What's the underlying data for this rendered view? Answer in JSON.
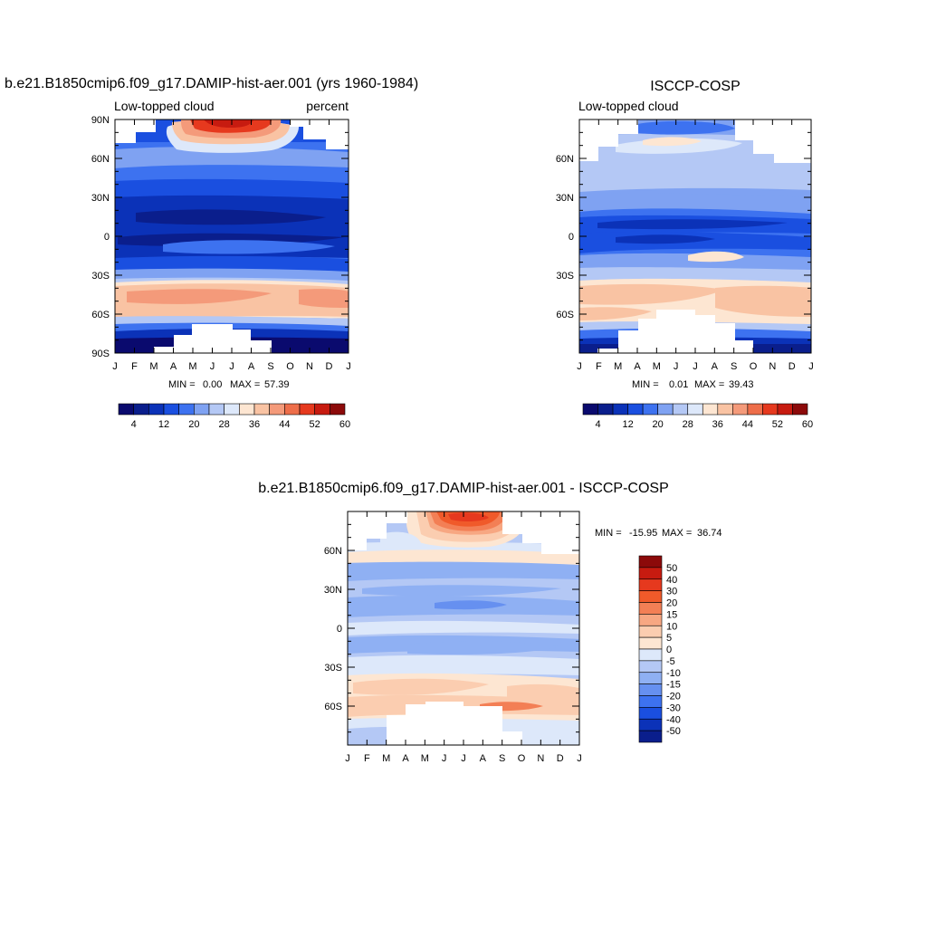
{
  "chart_data": [
    {
      "type": "heatmap",
      "title": "b.e21.B1850cmip6.f09_g17.DAMIP-hist-aer.001 (yrs 1960-1984)",
      "left_string": "Low-topped cloud",
      "right_string": "percent",
      "x_tick_labels": [
        "J",
        "F",
        "M",
        "A",
        "M",
        "J",
        "J",
        "A",
        "S",
        "O",
        "N",
        "D",
        "J"
      ],
      "y_tick_labels": [
        "90N",
        "60N",
        "30N",
        "0",
        "30S",
        "60S",
        "90S"
      ],
      "y_tick_values": [
        90,
        60,
        30,
        0,
        -30,
        -60,
        -90
      ],
      "ylim": [
        -90,
        90
      ],
      "min_label": "MIN =",
      "min_value": "0.00",
      "max_label": "MAX =",
      "max_value": "57.39",
      "colorbar_labels": [
        "4",
        "12",
        "20",
        "28",
        "36",
        "44",
        "52",
        "60"
      ],
      "colorbar_levels": [
        0,
        8,
        16,
        24,
        32,
        40,
        48,
        56,
        64
      ],
      "colorbar_colors": [
        "#0a0a6e",
        "#0a1e8c",
        "#0b32b8",
        "#1a4fe0",
        "#3d72f0",
        "#7fa2f2",
        "#b4c8f5",
        "#dde8fa",
        "#fde6d2",
        "#f9c3a3",
        "#f49a7a",
        "#ee6e4a",
        "#e6391e",
        "#c71b10",
        "#8c0a0a"
      ]
    },
    {
      "type": "heatmap",
      "title": "ISCCP-COSP",
      "left_string": "Low-topped cloud",
      "x_tick_labels": [
        "J",
        "F",
        "M",
        "A",
        "M",
        "J",
        "J",
        "A",
        "S",
        "O",
        "N",
        "D",
        "J"
      ],
      "y_tick_labels": [
        "60N",
        "30N",
        "0",
        "30S",
        "60S"
      ],
      "y_tick_values": [
        60,
        30,
        0,
        -30,
        -60
      ],
      "ylim": [
        -90,
        90
      ],
      "min_label": "MIN =",
      "min_value": "0.01",
      "max_label": "MAX =",
      "max_value": "39.43",
      "colorbar_labels": [
        "4",
        "12",
        "20",
        "28",
        "36",
        "44",
        "52",
        "60"
      ],
      "colorbar_levels": [
        0,
        8,
        16,
        24,
        32,
        40,
        48,
        56,
        64
      ],
      "colorbar_colors": [
        "#0a0a6e",
        "#0a1e8c",
        "#0b32b8",
        "#1a4fe0",
        "#3d72f0",
        "#7fa2f2",
        "#b4c8f5",
        "#dde8fa",
        "#fde6d2",
        "#f9c3a3",
        "#f49a7a",
        "#ee6e4a",
        "#e6391e",
        "#c71b10",
        "#8c0a0a"
      ]
    },
    {
      "type": "heatmap",
      "title": "b.e21.B1850cmip6.f09_g17.DAMIP-hist-aer.001 - ISCCP-COSP",
      "x_tick_labels": [
        "J",
        "F",
        "M",
        "A",
        "M",
        "J",
        "J",
        "A",
        "S",
        "O",
        "N",
        "D",
        "J"
      ],
      "y_tick_labels": [
        "60N",
        "30N",
        "0",
        "30S",
        "60S"
      ],
      "y_tick_values": [
        60,
        30,
        0,
        -30,
        -60
      ],
      "ylim": [
        -90,
        90
      ],
      "min_label": "MIN =",
      "min_value": "-15.95",
      "max_label": "MAX =",
      "max_value": "36.74",
      "colorbar_labels": [
        "50",
        "40",
        "30",
        "20",
        "15",
        "10",
        "5",
        "0",
        "-5",
        "-10",
        "-15",
        "-20",
        "-30",
        "-40",
        "-50"
      ],
      "colorbar_levels": [
        -60,
        -50,
        -40,
        -30,
        -20,
        -15,
        -10,
        -5,
        0,
        5,
        10,
        15,
        20,
        30,
        40,
        50,
        60
      ],
      "colorbar_colors": [
        "#8c0a0a",
        "#c71b10",
        "#e6391e",
        "#f05a2a",
        "#f37f55",
        "#f7a782",
        "#fbcdb0",
        "#fde6d2",
        "#dde8fa",
        "#b4c8f5",
        "#8fb0f3",
        "#6690f0",
        "#3d72f0",
        "#1a4fe0",
        "#0b32b8",
        "#0a1e8c"
      ]
    }
  ]
}
